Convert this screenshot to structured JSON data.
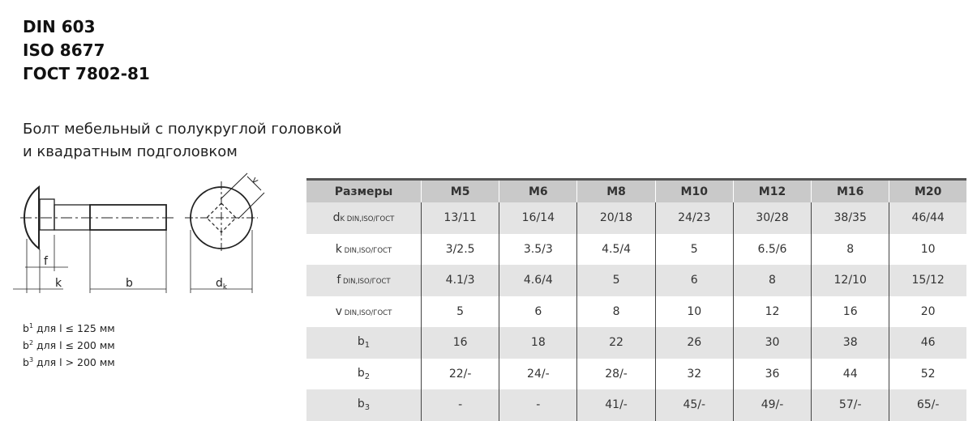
{
  "standards": [
    "DIN 603",
    "ISO 8677",
    "ГОСТ 7802-81"
  ],
  "description": [
    "Болт мебельный с полукруглой головкой",
    "и квадратным подголовком"
  ],
  "drawing_labels": {
    "f": "f",
    "k": "k",
    "b": "b",
    "dk": "d",
    "dk_sub": "k",
    "v": "v"
  },
  "notes": [
    {
      "b": "b",
      "sup": "1",
      "text": " для l ≤ 125 мм"
    },
    {
      "b": "b",
      "sup": "2",
      "text": " для l ≤ 200 мм"
    },
    {
      "b": "b",
      "sup": "3",
      "text": " для l > 200 мм"
    }
  ],
  "table": {
    "headers": [
      "Размеры",
      "M5",
      "M6",
      "M8",
      "M10",
      "M12",
      "M16",
      "M20"
    ],
    "rows": [
      {
        "label": "d",
        "sub": "k",
        "suffix": " DIN,ISO/ГОСТ",
        "values": [
          "13/11",
          "16/14",
          "20/18",
          "24/23",
          "30/28",
          "38/35",
          "46/44"
        ]
      },
      {
        "label": "k",
        "sub": "",
        "suffix": " DIN,ISO/ГОСТ",
        "values": [
          "3/2.5",
          "3.5/3",
          "4.5/4",
          "5",
          "6.5/6",
          "8",
          "10"
        ]
      },
      {
        "label": "f",
        "sub": "",
        "suffix": " DIN,ISO/ГОСТ",
        "values": [
          "4.1/3",
          "4.6/4",
          "5",
          "6",
          "8",
          "12/10",
          "15/12"
        ]
      },
      {
        "label": "v",
        "sub": "",
        "suffix": " DIN,ISO/ГОСТ",
        "values": [
          "5",
          "6",
          "8",
          "10",
          "12",
          "16",
          "20"
        ]
      },
      {
        "label": "b",
        "sub": "1",
        "suffix": "",
        "values": [
          "16",
          "18",
          "22",
          "26",
          "30",
          "38",
          "46"
        ]
      },
      {
        "label": "b",
        "sub": "2",
        "suffix": "",
        "values": [
          "22/-",
          "24/-",
          "28/-",
          "32",
          "36",
          "44",
          "52"
        ]
      },
      {
        "label": "b",
        "sub": "3",
        "suffix": "",
        "values": [
          "-",
          "-",
          "41/-",
          "45/-",
          "49/-",
          "57/-",
          "65/-"
        ]
      }
    ]
  }
}
